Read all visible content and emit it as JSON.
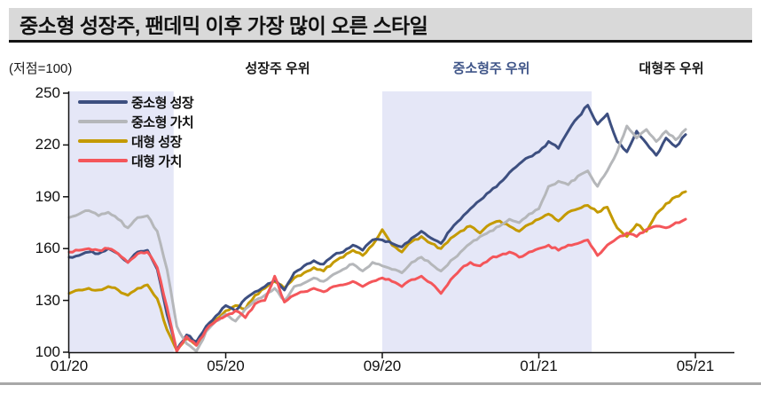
{
  "title": "중소형 성장주, 팬데믹 이후 가장 많이 오른 스타일",
  "axis_note": "(저점=100)",
  "annotations": [
    {
      "label": "성장주 우위",
      "color": "#1a1a1a"
    },
    {
      "label": "중소형주 우위",
      "color": "#3f5588"
    },
    {
      "label": "대형주 우위",
      "color": "#1a1a1a"
    }
  ],
  "colors": {
    "navy": "#3d4f80",
    "gray": "#b5b7ba",
    "gold": "#c49a00",
    "red": "#f4565a",
    "band": "#e5e7f7",
    "titlebar_bg": "#d9d9d9",
    "title_underline": "#141414",
    "annotation_blue": "#3f5588",
    "axis": "#111111",
    "footer_rule": "#a8a8a8"
  },
  "chart_data": {
    "type": "line",
    "title": "중소형 성장주, 팬데믹 이후 가장 많이 오른 스타일",
    "ylabel": "(저점=100)",
    "x_tick_labels": [
      "01/20",
      "05/20",
      "09/20",
      "01/21",
      "05/21"
    ],
    "x_tick_positions_months": [
      0,
      4,
      8,
      12,
      16
    ],
    "y_ticks": [
      100,
      130,
      160,
      190,
      220,
      250
    ],
    "ylim": [
      100,
      250
    ],
    "x_start": "2020-01",
    "x_end": "2021-05",
    "sample_step_months": 0.25,
    "grid": false,
    "legend_position": "top-left",
    "shaded_regions_months": [
      [
        0,
        2.67
      ],
      [
        8,
        13.35
      ]
    ],
    "shaded_region_meanings": [
      "성장주 우위 시작 구간",
      "중소형주 우위 구간"
    ],
    "draw_order": [
      2,
      0,
      1,
      3
    ],
    "series": [
      {
        "name": "중소형 성장",
        "color": "#3d4f80",
        "values": [
          155,
          156,
          158,
          157,
          160,
          157,
          152,
          158,
          159,
          148,
          122,
          101,
          110,
          106,
          115,
          121,
          127,
          124,
          131,
          135,
          138,
          142,
          136,
          146,
          150,
          153,
          151,
          156,
          158,
          162,
          159,
          165,
          165,
          163,
          161,
          166,
          170,
          166,
          163,
          171,
          177,
          183,
          188,
          193,
          198,
          204,
          209,
          213,
          216,
          222,
          218,
          228,
          236,
          243,
          232,
          238,
          222,
          216,
          228,
          221,
          214,
          224,
          219,
          226
        ]
      },
      {
        "name": "중소형 가치",
        "color": "#b5b7ba",
        "values": [
          178,
          180,
          182,
          179,
          181,
          177,
          172,
          178,
          179,
          170,
          148,
          115,
          105,
          100,
          112,
          118,
          122,
          118,
          125,
          130,
          133,
          137,
          130,
          138,
          140,
          143,
          141,
          145,
          148,
          151,
          147,
          152,
          150,
          148,
          146,
          152,
          155,
          151,
          147,
          153,
          158,
          163,
          167,
          170,
          173,
          177,
          175,
          180,
          183,
          196,
          199,
          197,
          202,
          205,
          196,
          205,
          216,
          231,
          224,
          229,
          222,
          228,
          223,
          229
        ]
      },
      {
        "name": "대형 성장",
        "color": "#c49a00",
        "values": [
          134,
          136,
          137,
          136,
          138,
          136,
          133,
          137,
          139,
          131,
          113,
          101,
          108,
          104,
          114,
          119,
          124,
          127,
          125,
          133,
          137,
          141,
          137,
          143,
          146,
          149,
          147,
          152,
          155,
          159,
          156,
          162,
          171,
          162,
          158,
          164,
          167,
          163,
          160,
          166,
          170,
          173,
          169,
          174,
          176,
          173,
          170,
          174,
          177,
          180,
          176,
          181,
          183,
          185,
          181,
          184,
          172,
          167,
          174,
          170,
          180,
          186,
          190,
          193
        ]
      },
      {
        "name": "대형 가치",
        "color": "#f4565a",
        "values": [
          158,
          159,
          160,
          159,
          160,
          157,
          152,
          157,
          158,
          149,
          126,
          100,
          109,
          104,
          113,
          118,
          121,
          124,
          120,
          128,
          130,
          144,
          129,
          133,
          135,
          137,
          135,
          138,
          139,
          141,
          138,
          141,
          143,
          141,
          138,
          142,
          144,
          140,
          134,
          142,
          148,
          152,
          150,
          154,
          156,
          158,
          155,
          158,
          160,
          162,
          159,
          162,
          163,
          165,
          156,
          162,
          166,
          169,
          167,
          171,
          173,
          172,
          175,
          177
        ]
      }
    ]
  }
}
